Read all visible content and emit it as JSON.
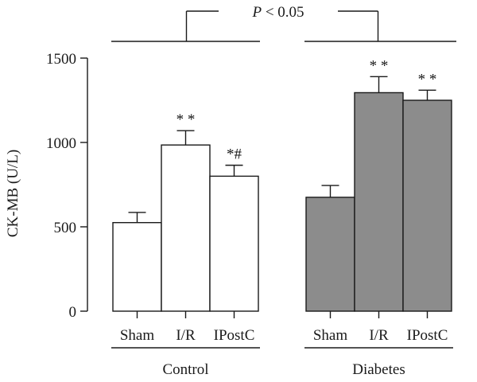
{
  "chart_data": {
    "type": "bar",
    "ylabel": "CK-MB (U/L)",
    "ylim": [
      0,
      1500
    ],
    "yticks": [
      0,
      500,
      1000,
      1500
    ],
    "grid": false,
    "groups": [
      {
        "label": "Control",
        "fill": "#ffffff",
        "bars": [
          {
            "category": "Sham",
            "value": 525,
            "error": 60,
            "annotation": ""
          },
          {
            "category": "I/R",
            "value": 985,
            "error": 85,
            "annotation": "**"
          },
          {
            "category": "IPostC",
            "value": 800,
            "error": 65,
            "annotation": "*#"
          }
        ]
      },
      {
        "label": "Diabetes",
        "fill": "#8c8c8c",
        "bars": [
          {
            "category": "Sham",
            "value": 675,
            "error": 70,
            "annotation": ""
          },
          {
            "category": "I/R",
            "value": 1295,
            "error": 95,
            "annotation": "**"
          },
          {
            "category": "IPostC",
            "value": 1250,
            "error": 60,
            "annotation": "**"
          }
        ]
      }
    ],
    "significance": {
      "text": "P < 0.05"
    }
  },
  "colors": {
    "axis": "#1a1a1a",
    "control_fill": "#ffffff",
    "diabetes_fill": "#8c8c8c"
  }
}
